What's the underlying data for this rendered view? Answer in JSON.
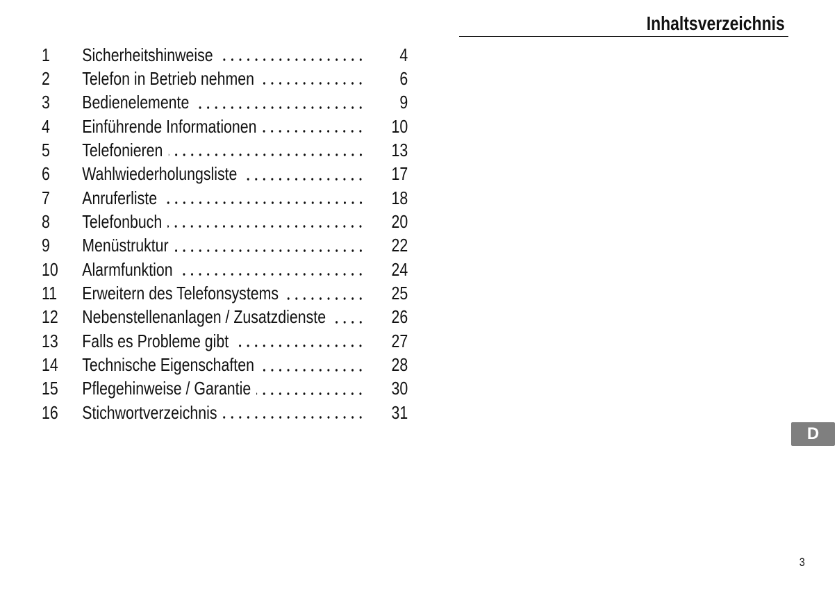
{
  "header": {
    "title": "Inhaltsverzeichnis"
  },
  "toc": [
    {
      "num": "1",
      "label": "Sicherheitshinweise",
      "page": "4"
    },
    {
      "num": "2",
      "label": "Telefon in Betrieb nehmen",
      "page": "6"
    },
    {
      "num": "3",
      "label": "Bedienelemente",
      "page": "9"
    },
    {
      "num": "4",
      "label": "Einführende Informationen",
      "page": "10"
    },
    {
      "num": "5",
      "label": "Telefonieren",
      "page": "13"
    },
    {
      "num": "6",
      "label": "Wahlwiederholungsliste",
      "page": "17"
    },
    {
      "num": "7",
      "label": "Anruferliste",
      "page": "18"
    },
    {
      "num": "8",
      "label": "Telefonbuch",
      "page": "20"
    },
    {
      "num": "9",
      "label": "Menüstruktur",
      "page": "22"
    },
    {
      "num": "10",
      "label": "Alarmfunktion",
      "page": "24"
    },
    {
      "num": "11",
      "label": "Erweitern des Telefonsystems",
      "page": "25"
    },
    {
      "num": "12",
      "label": "Nebenstellenanlagen / Zusatzdienste",
      "page": "26"
    },
    {
      "num": "13",
      "label": "Falls es Probleme gibt",
      "page": "27"
    },
    {
      "num": "14",
      "label": "Technische Eigenschaften",
      "page": "28"
    },
    {
      "num": "15",
      "label": "Pflegehinweise / Garantie",
      "page": "30"
    },
    {
      "num": "16",
      "label": "Stichwortverzeichnis",
      "page": "31"
    }
  ],
  "language_tab": {
    "label": "D",
    "color": "#7f7f7f"
  },
  "footer": {
    "page_number": "3"
  }
}
